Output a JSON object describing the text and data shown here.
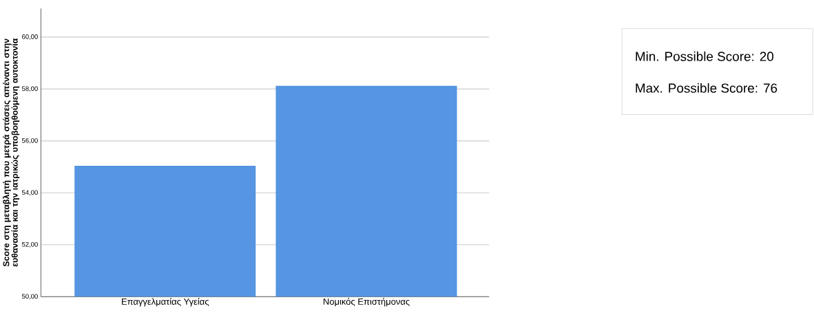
{
  "chart_data": {
    "type": "bar",
    "ylabel": "Score στη μεταβλητή που μετρά στάσεις απέναντι στην ευθανασία και την ιατρικώς υποβοηθούμενη αυτοκτονία",
    "categories": [
      "Επαγγελματίας Υγείας",
      "Νομικός Επιστήμονας"
    ],
    "values": [
      55.04,
      58.12
    ],
    "color": "#5595e2",
    "ylim": [
      50,
      61.1
    ],
    "yticks": [
      {
        "value": 50,
        "label": "50,00"
      },
      {
        "value": 52,
        "label": "52,00"
      },
      {
        "value": 54,
        "label": "54,00"
      },
      {
        "value": 56,
        "label": "56,00"
      },
      {
        "value": 58,
        "label": "58,00"
      },
      {
        "value": 60,
        "label": "60,00"
      }
    ],
    "grid": "y",
    "annotations": [
      "Min. Possible Score: 20",
      "Max. Possible Score: 76"
    ]
  }
}
